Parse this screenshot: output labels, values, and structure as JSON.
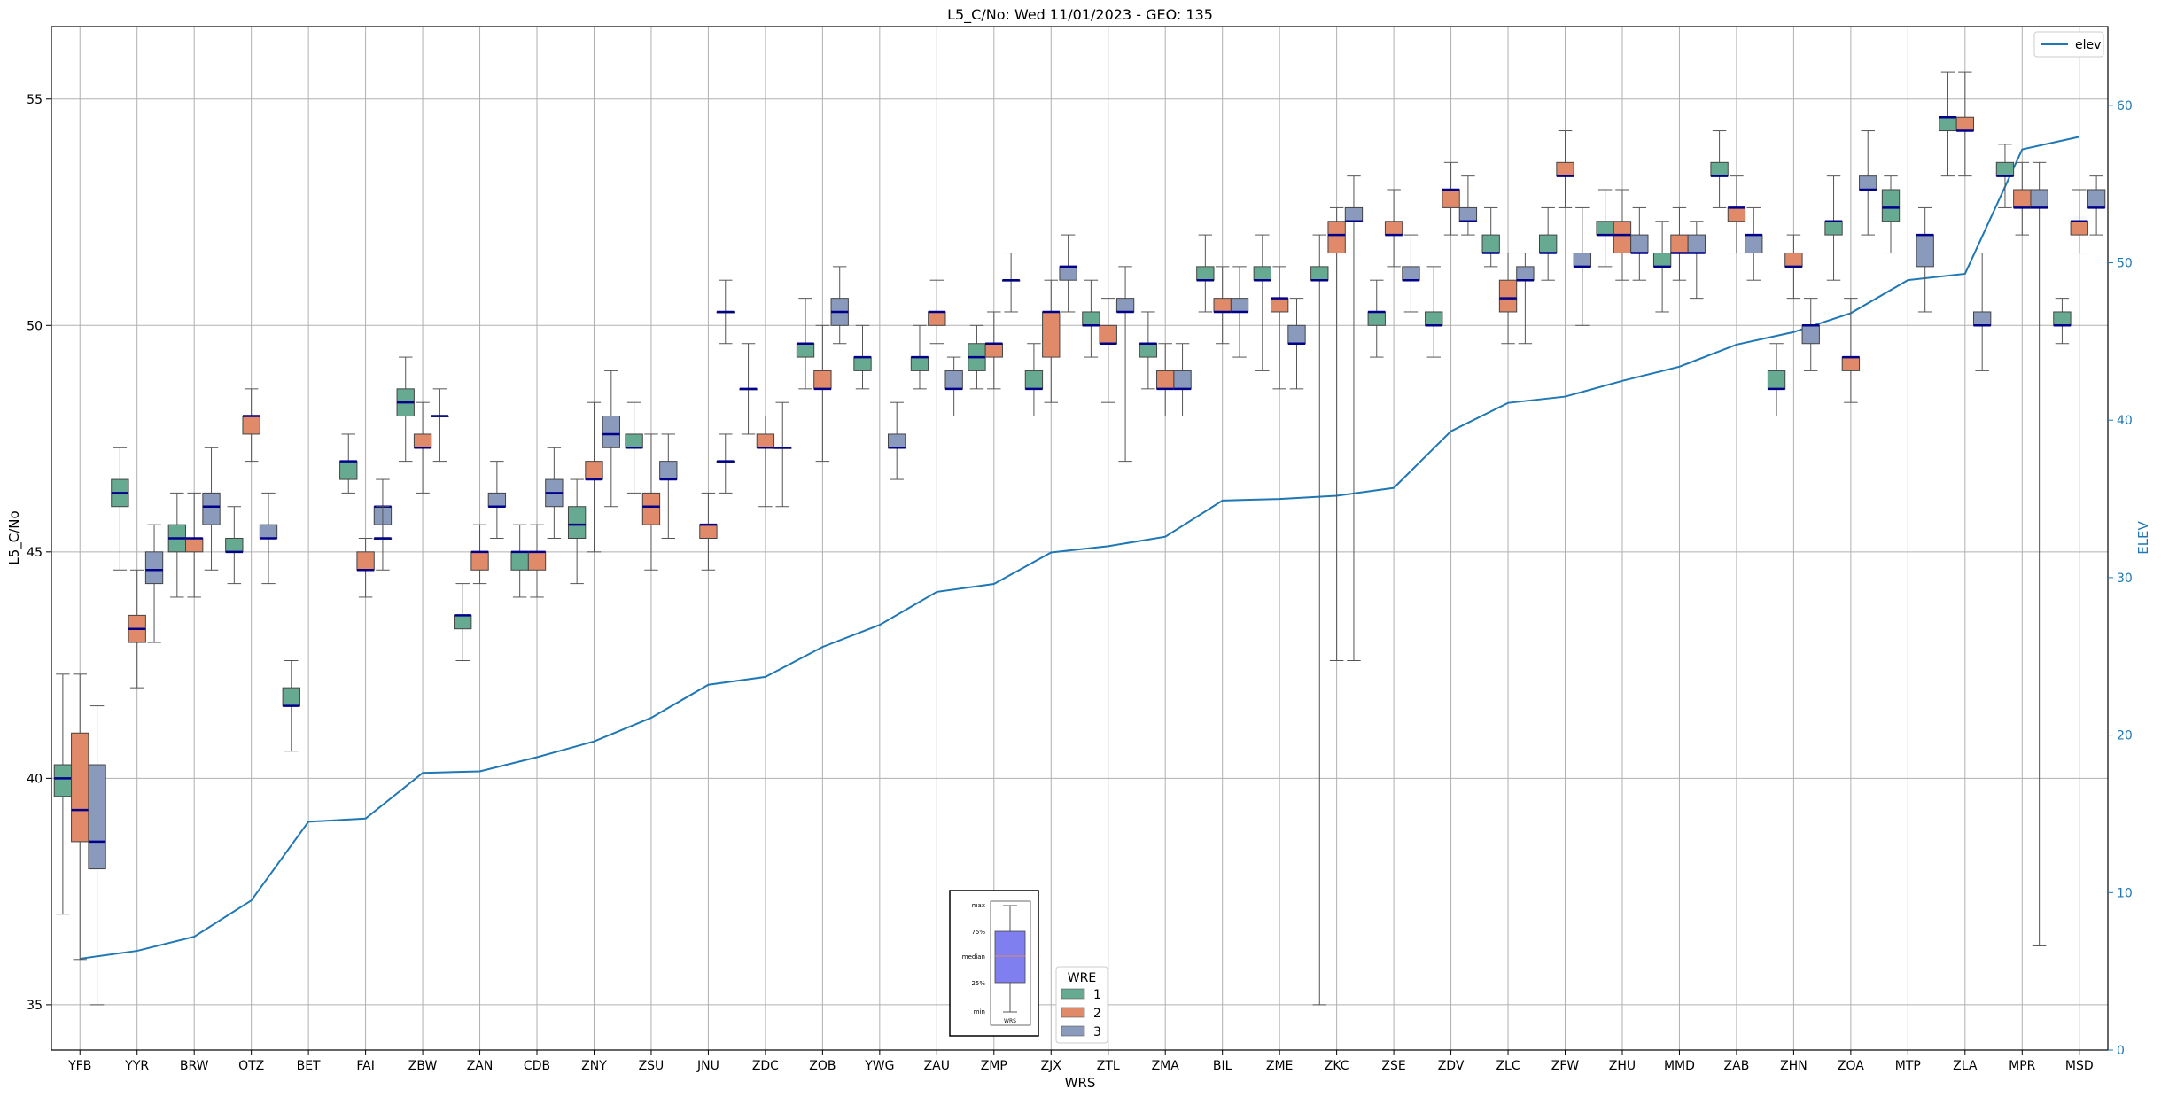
{
  "chart_data": {
    "type": "boxplot",
    "title": "L5_C/No: Wed 11/01/2023 - GEO: 135",
    "xlabel": "WRS",
    "ylabel": "L5_C/No",
    "y2label": "ELEV",
    "ylim": [
      34,
      56.6
    ],
    "y2lim": [
      0,
      65
    ],
    "yticks": [
      35,
      40,
      45,
      50,
      55
    ],
    "y2ticks": [
      0,
      10,
      20,
      30,
      40,
      50,
      60
    ],
    "grid": true,
    "legend": {
      "label": "elev",
      "placement": "top-right"
    },
    "hue_legend": {
      "title": "WRE",
      "entries": [
        "1",
        "2",
        "3"
      ],
      "placement": "bottom-center"
    },
    "colors": {
      "1": "#66ab91",
      "2": "#e08a69",
      "3": "#8a9abd",
      "elev": "#1f77b4",
      "median": "#00008b",
      "right_axis": "#1f77b4"
    },
    "categories": [
      "YFB",
      "YYR",
      "BRW",
      "OTZ",
      "BET",
      "FAI",
      "ZBW",
      "ZAN",
      "CDB",
      "ZNY",
      "ZSU",
      "JNU",
      "ZDC",
      "ZOB",
      "YWG",
      "ZAU",
      "ZMP",
      "ZJX",
      "ZTL",
      "ZMA",
      "BIL",
      "ZME",
      "ZKC",
      "ZSE",
      "ZDV",
      "ZLC",
      "ZFW",
      "ZHU",
      "MMD",
      "ZAB",
      "ZHN",
      "ZOA",
      "MTP",
      "ZLA",
      "MPR",
      "MSD"
    ],
    "elev": [
      5.8,
      6.3,
      7.2,
      9.5,
      14.5,
      14.7,
      17.6,
      17.7,
      18.6,
      19.6,
      21.1,
      23.2,
      23.7,
      25.6,
      27.0,
      29.1,
      29.6,
      31.6,
      32.0,
      32.6,
      34.9,
      35.0,
      35.2,
      35.7,
      39.3,
      41.1,
      41.5,
      42.5,
      43.4,
      44.8,
      45.6,
      46.8,
      48.9,
      49.3,
      57.2,
      58.0
    ],
    "boxes": [
      {
        "wrs": "YFB",
        "wre": "1",
        "min": 37.0,
        "q1": 39.6,
        "median": 40.0,
        "q3": 40.3,
        "max": 42.3
      },
      {
        "wrs": "YFB",
        "wre": "2",
        "min": 36.0,
        "q1": 38.6,
        "median": 39.3,
        "q3": 41.0,
        "max": 42.3
      },
      {
        "wrs": "YFB",
        "wre": "3",
        "min": 35.0,
        "q1": 38.0,
        "median": 38.6,
        "q3": 40.3,
        "max": 41.6
      },
      {
        "wrs": "YYR",
        "wre": "1",
        "min": 44.6,
        "q1": 46.0,
        "median": 46.3,
        "q3": 46.6,
        "max": 47.3
      },
      {
        "wrs": "YYR",
        "wre": "2",
        "min": 42.0,
        "q1": 43.0,
        "median": 43.3,
        "q3": 43.6,
        "max": 44.6
      },
      {
        "wrs": "YYR",
        "wre": "3",
        "min": 43.0,
        "q1": 44.3,
        "median": 44.6,
        "q3": 45.0,
        "max": 45.6
      },
      {
        "wrs": "BRW",
        "wre": "1",
        "min": 44.0,
        "q1": 45.0,
        "median": 45.3,
        "q3": 45.6,
        "max": 46.3
      },
      {
        "wrs": "BRW",
        "wre": "2",
        "min": 44.0,
        "q1": 45.0,
        "median": 45.3,
        "q3": 45.3,
        "max": 46.3
      },
      {
        "wrs": "BRW",
        "wre": "3",
        "min": 44.6,
        "q1": 45.6,
        "median": 46.0,
        "q3": 46.3,
        "max": 47.3
      },
      {
        "wrs": "OTZ",
        "wre": "1",
        "min": 44.3,
        "q1": 45.0,
        "median": 45.0,
        "q3": 45.3,
        "max": 46.0
      },
      {
        "wrs": "OTZ",
        "wre": "2",
        "min": 47.0,
        "q1": 47.6,
        "median": 48.0,
        "q3": 48.0,
        "max": 48.6
      },
      {
        "wrs": "OTZ",
        "wre": "3",
        "min": 44.3,
        "q1": 45.3,
        "median": 45.3,
        "q3": 45.6,
        "max": 46.3
      },
      {
        "wrs": "BET",
        "wre": "1",
        "min": 40.6,
        "q1": 41.6,
        "median": 41.6,
        "q3": 42.0,
        "max": 42.6
      },
      {
        "wrs": "FAI",
        "wre": "1",
        "min": 46.3,
        "q1": 46.6,
        "median": 47.0,
        "q3": 47.0,
        "max": 47.6
      },
      {
        "wrs": "FAI",
        "wre": "2",
        "min": 44.0,
        "q1": 44.6,
        "median": 44.6,
        "q3": 45.0,
        "max": 45.3
      },
      {
        "wrs": "FAI",
        "wre": "3",
        "min": 45.3,
        "q1": 45.6,
        "median": 46.0,
        "q3": 46.0,
        "max": 46.6
      },
      {
        "wrs": "FAI",
        "wre": "3b",
        "min": 44.6,
        "q1": 45.3,
        "median": 45.3,
        "q3": 45.3,
        "max": 46.0
      },
      {
        "wrs": "ZBW",
        "wre": "1",
        "min": 47.0,
        "q1": 48.0,
        "median": 48.3,
        "q3": 48.6,
        "max": 49.3
      },
      {
        "wrs": "ZBW",
        "wre": "2",
        "min": 46.3,
        "q1": 47.3,
        "median": 47.3,
        "q3": 47.6,
        "max": 48.3
      },
      {
        "wrs": "ZBW",
        "wre": "3",
        "min": 47.0,
        "q1": 48.0,
        "median": 48.0,
        "q3": 48.0,
        "max": 48.6
      },
      {
        "wrs": "ZAN",
        "wre": "1",
        "min": 42.6,
        "q1": 43.3,
        "median": 43.6,
        "q3": 43.6,
        "max": 44.3
      },
      {
        "wrs": "ZAN",
        "wre": "2",
        "min": 44.3,
        "q1": 44.6,
        "median": 45.0,
        "q3": 45.0,
        "max": 45.6
      },
      {
        "wrs": "ZAN",
        "wre": "3",
        "min": 45.3,
        "q1": 46.0,
        "median": 46.0,
        "q3": 46.3,
        "max": 47.0
      },
      {
        "wrs": "CDB",
        "wre": "1",
        "min": 44.0,
        "q1": 44.6,
        "median": 45.0,
        "q3": 45.0,
        "max": 45.6
      },
      {
        "wrs": "CDB",
        "wre": "2",
        "min": 44.0,
        "q1": 44.6,
        "median": 45.0,
        "q3": 45.0,
        "max": 45.6
      },
      {
        "wrs": "CDB",
        "wre": "3",
        "min": 45.3,
        "q1": 46.0,
        "median": 46.3,
        "q3": 46.6,
        "max": 47.3
      },
      {
        "wrs": "ZNY",
        "wre": "1",
        "min": 44.3,
        "q1": 45.3,
        "median": 45.6,
        "q3": 46.0,
        "max": 46.6
      },
      {
        "wrs": "ZNY",
        "wre": "2",
        "min": 45.0,
        "q1": 46.6,
        "median": 46.6,
        "q3": 47.0,
        "max": 48.3
      },
      {
        "wrs": "ZNY",
        "wre": "3",
        "min": 46.0,
        "q1": 47.3,
        "median": 47.6,
        "q3": 48.0,
        "max": 49.0
      },
      {
        "wrs": "ZSU",
        "wre": "1",
        "min": 46.3,
        "q1": 47.3,
        "median": 47.3,
        "q3": 47.6,
        "max": 48.3
      },
      {
        "wrs": "ZSU",
        "wre": "2",
        "min": 44.6,
        "q1": 45.6,
        "median": 46.0,
        "q3": 46.3,
        "max": 47.6
      },
      {
        "wrs": "ZSU",
        "wre": "3",
        "min": 45.3,
        "q1": 46.6,
        "median": 46.6,
        "q3": 47.0,
        "max": 47.6
      },
      {
        "wrs": "JNU",
        "wre": "2",
        "min": 44.6,
        "q1": 45.3,
        "median": 45.6,
        "q3": 45.6,
        "max": 46.3
      },
      {
        "wrs": "JNU",
        "wre": "3",
        "min": 46.3,
        "q1": 47.0,
        "median": 47.0,
        "q3": 47.0,
        "max": 47.6
      },
      {
        "wrs": "JNU",
        "wre": "3b",
        "min": 49.6,
        "q1": 50.3,
        "median": 50.3,
        "q3": 50.3,
        "max": 51.0
      },
      {
        "wrs": "ZDC",
        "wre": "1",
        "min": 47.6,
        "q1": 48.6,
        "median": 48.6,
        "q3": 48.6,
        "max": 49.6
      },
      {
        "wrs": "ZDC",
        "wre": "2",
        "min": 46.0,
        "q1": 47.3,
        "median": 47.3,
        "q3": 47.6,
        "max": 48.0
      },
      {
        "wrs": "ZDC",
        "wre": "3",
        "min": 46.0,
        "q1": 47.3,
        "median": 47.3,
        "q3": 47.3,
        "max": 48.3
      },
      {
        "wrs": "ZOB",
        "wre": "1",
        "min": 48.6,
        "q1": 49.3,
        "median": 49.6,
        "q3": 49.6,
        "max": 50.6
      },
      {
        "wrs": "ZOB",
        "wre": "2",
        "min": 47.0,
        "q1": 48.6,
        "median": 48.6,
        "q3": 49.0,
        "max": 50.0
      },
      {
        "wrs": "ZOB",
        "wre": "3",
        "min": 49.6,
        "q1": 50.0,
        "median": 50.3,
        "q3": 50.6,
        "max": 51.3
      },
      {
        "wrs": "YWG",
        "wre": "1",
        "min": 48.6,
        "q1": 49.0,
        "median": 49.3,
        "q3": 49.3,
        "max": 50.0
      },
      {
        "wrs": "YWG",
        "wre": "3",
        "min": 46.6,
        "q1": 47.3,
        "median": 47.3,
        "q3": 47.6,
        "max": 48.3
      },
      {
        "wrs": "ZAU",
        "wre": "1",
        "min": 48.6,
        "q1": 49.0,
        "median": 49.3,
        "q3": 49.3,
        "max": 50.0
      },
      {
        "wrs": "ZAU",
        "wre": "2",
        "min": 49.6,
        "q1": 50.0,
        "median": 50.3,
        "q3": 50.3,
        "max": 51.0
      },
      {
        "wrs": "ZAU",
        "wre": "3",
        "min": 48.0,
        "q1": 48.6,
        "median": 48.6,
        "q3": 49.0,
        "max": 49.3
      },
      {
        "wrs": "ZMP",
        "wre": "1",
        "min": 48.6,
        "q1": 49.0,
        "median": 49.3,
        "q3": 49.6,
        "max": 50.0
      },
      {
        "wrs": "ZMP",
        "wre": "2",
        "min": 48.6,
        "q1": 49.3,
        "median": 49.6,
        "q3": 49.6,
        "max": 50.3
      },
      {
        "wrs": "ZMP",
        "wre": "3",
        "min": 50.3,
        "q1": 51.0,
        "median": 51.0,
        "q3": 51.0,
        "max": 51.6
      },
      {
        "wrs": "ZJX",
        "wre": "1",
        "min": 48.0,
        "q1": 48.6,
        "median": 48.6,
        "q3": 49.0,
        "max": 49.6
      },
      {
        "wrs": "ZJX",
        "wre": "2",
        "min": 48.3,
        "q1": 49.3,
        "median": 50.3,
        "q3": 50.3,
        "max": 51.0
      },
      {
        "wrs": "ZJX",
        "wre": "3",
        "min": 50.3,
        "q1": 51.0,
        "median": 51.3,
        "q3": 51.3,
        "max": 52.0
      },
      {
        "wrs": "ZTL",
        "wre": "1",
        "min": 49.3,
        "q1": 50.0,
        "median": 50.0,
        "q3": 50.3,
        "max": 51.0
      },
      {
        "wrs": "ZTL",
        "wre": "2",
        "min": 48.3,
        "q1": 49.6,
        "median": 49.6,
        "q3": 50.0,
        "max": 50.6
      },
      {
        "wrs": "ZTL",
        "wre": "3",
        "min": 47.0,
        "q1": 50.3,
        "median": 50.3,
        "q3": 50.6,
        "max": 51.3
      },
      {
        "wrs": "ZMA",
        "wre": "1",
        "min": 48.6,
        "q1": 49.3,
        "median": 49.6,
        "q3": 49.6,
        "max": 50.3
      },
      {
        "wrs": "ZMA",
        "wre": "2",
        "min": 48.0,
        "q1": 48.6,
        "median": 48.6,
        "q3": 49.0,
        "max": 49.6
      },
      {
        "wrs": "ZMA",
        "wre": "3",
        "min": 48.0,
        "q1": 48.6,
        "median": 48.6,
        "q3": 49.0,
        "max": 49.6
      },
      {
        "wrs": "BIL",
        "wre": "1",
        "min": 50.3,
        "q1": 51.0,
        "median": 51.0,
        "q3": 51.3,
        "max": 52.0
      },
      {
        "wrs": "BIL",
        "wre": "2",
        "min": 49.6,
        "q1": 50.3,
        "median": 50.3,
        "q3": 50.6,
        "max": 51.3
      },
      {
        "wrs": "BIL",
        "wre": "3",
        "min": 49.3,
        "q1": 50.3,
        "median": 50.3,
        "q3": 50.6,
        "max": 51.3
      },
      {
        "wrs": "ZME",
        "wre": "1",
        "min": 49.0,
        "q1": 51.0,
        "median": 51.0,
        "q3": 51.3,
        "max": 52.0
      },
      {
        "wrs": "ZME",
        "wre": "2",
        "min": 48.6,
        "q1": 50.3,
        "median": 50.6,
        "q3": 50.6,
        "max": 51.3
      },
      {
        "wrs": "ZME",
        "wre": "3",
        "min": 48.6,
        "q1": 49.6,
        "median": 49.6,
        "q3": 50.0,
        "max": 50.6
      },
      {
        "wrs": "ZKC",
        "wre": "1",
        "min": 35.0,
        "q1": 51.0,
        "median": 51.0,
        "q3": 51.3,
        "max": 52.0
      },
      {
        "wrs": "ZKC",
        "wre": "2",
        "min": 42.6,
        "q1": 51.6,
        "median": 52.0,
        "q3": 52.3,
        "max": 52.6
      },
      {
        "wrs": "ZKC",
        "wre": "3",
        "min": 42.6,
        "q1": 52.3,
        "median": 52.3,
        "q3": 52.6,
        "max": 53.3
      },
      {
        "wrs": "ZSE",
        "wre": "1",
        "min": 49.3,
        "q1": 50.0,
        "median": 50.3,
        "q3": 50.3,
        "max": 51.0
      },
      {
        "wrs": "ZSE",
        "wre": "2",
        "min": 51.3,
        "q1": 52.0,
        "median": 52.0,
        "q3": 52.3,
        "max": 53.0
      },
      {
        "wrs": "ZSE",
        "wre": "3",
        "min": 50.3,
        "q1": 51.0,
        "median": 51.0,
        "q3": 51.3,
        "max": 52.0
      },
      {
        "wrs": "ZDV",
        "wre": "1",
        "min": 49.3,
        "q1": 50.0,
        "median": 50.0,
        "q3": 50.3,
        "max": 51.3
      },
      {
        "wrs": "ZDV",
        "wre": "2",
        "min": 52.0,
        "q1": 52.6,
        "median": 53.0,
        "q3": 53.0,
        "max": 53.6
      },
      {
        "wrs": "ZDV",
        "wre": "3",
        "min": 52.0,
        "q1": 52.3,
        "median": 52.3,
        "q3": 52.6,
        "max": 53.3
      },
      {
        "wrs": "ZLC",
        "wre": "1",
        "min": 51.3,
        "q1": 51.6,
        "median": 51.6,
        "q3": 52.0,
        "max": 52.6
      },
      {
        "wrs": "ZLC",
        "wre": "2",
        "min": 49.6,
        "q1": 50.3,
        "median": 50.6,
        "q3": 51.0,
        "max": 51.6
      },
      {
        "wrs": "ZLC",
        "wre": "3",
        "min": 49.6,
        "q1": 51.0,
        "median": 51.0,
        "q3": 51.3,
        "max": 51.6
      },
      {
        "wrs": "ZFW",
        "wre": "1",
        "min": 51.0,
        "q1": 51.6,
        "median": 51.6,
        "q3": 52.0,
        "max": 52.6
      },
      {
        "wrs": "ZFW",
        "wre": "2",
        "min": 52.6,
        "q1": 53.3,
        "median": 53.3,
        "q3": 53.6,
        "max": 54.3
      },
      {
        "wrs": "ZFW",
        "wre": "3",
        "min": 50.0,
        "q1": 51.3,
        "median": 51.3,
        "q3": 51.6,
        "max": 52.6
      },
      {
        "wrs": "ZHU",
        "wre": "1",
        "min": 51.3,
        "q1": 52.0,
        "median": 52.0,
        "q3": 52.3,
        "max": 53.0
      },
      {
        "wrs": "ZHU",
        "wre": "2",
        "min": 51.0,
        "q1": 51.6,
        "median": 52.0,
        "q3": 52.3,
        "max": 53.0
      },
      {
        "wrs": "ZHU",
        "wre": "3",
        "min": 51.0,
        "q1": 51.6,
        "median": 51.6,
        "q3": 52.0,
        "max": 52.6
      },
      {
        "wrs": "MMD",
        "wre": "1",
        "min": 50.3,
        "q1": 51.3,
        "median": 51.3,
        "q3": 51.6,
        "max": 52.3
      },
      {
        "wrs": "MMD",
        "wre": "2",
        "min": 51.0,
        "q1": 51.6,
        "median": 51.6,
        "q3": 52.0,
        "max": 52.6
      },
      {
        "wrs": "MMD",
        "wre": "3",
        "min": 50.6,
        "q1": 51.6,
        "median": 51.6,
        "q3": 52.0,
        "max": 52.3
      },
      {
        "wrs": "ZAB",
        "wre": "1",
        "min": 52.6,
        "q1": 53.3,
        "median": 53.3,
        "q3": 53.6,
        "max": 54.3
      },
      {
        "wrs": "ZAB",
        "wre": "2",
        "min": 51.6,
        "q1": 52.3,
        "median": 52.6,
        "q3": 52.6,
        "max": 53.3
      },
      {
        "wrs": "ZAB",
        "wre": "3",
        "min": 51.0,
        "q1": 51.6,
        "median": 52.0,
        "q3": 52.0,
        "max": 52.6
      },
      {
        "wrs": "ZHN",
        "wre": "1",
        "min": 48.0,
        "q1": 48.6,
        "median": 48.6,
        "q3": 49.0,
        "max": 49.6
      },
      {
        "wrs": "ZHN",
        "wre": "2",
        "min": 50.6,
        "q1": 51.3,
        "median": 51.3,
        "q3": 51.6,
        "max": 52.0
      },
      {
        "wrs": "ZHN",
        "wre": "3",
        "min": 49.0,
        "q1": 49.6,
        "median": 50.0,
        "q3": 50.0,
        "max": 50.6
      },
      {
        "wrs": "ZOA",
        "wre": "1",
        "min": 51.0,
        "q1": 52.0,
        "median": 52.3,
        "q3": 52.3,
        "max": 53.3
      },
      {
        "wrs": "ZOA",
        "wre": "2",
        "min": 48.3,
        "q1": 49.0,
        "median": 49.3,
        "q3": 49.3,
        "max": 50.6
      },
      {
        "wrs": "ZOA",
        "wre": "3",
        "min": 52.0,
        "q1": 53.0,
        "median": 53.0,
        "q3": 53.3,
        "max": 54.3
      },
      {
        "wrs": "MTP",
        "wre": "1",
        "min": 51.6,
        "q1": 52.3,
        "median": 52.6,
        "q3": 53.0,
        "max": 53.3
      },
      {
        "wrs": "MTP",
        "wre": "3",
        "min": 50.3,
        "q1": 51.3,
        "median": 52.0,
        "q3": 52.0,
        "max": 52.6
      },
      {
        "wrs": "ZLA",
        "wre": "1",
        "min": 53.3,
        "q1": 54.3,
        "median": 54.6,
        "q3": 54.6,
        "max": 55.6
      },
      {
        "wrs": "ZLA",
        "wre": "2",
        "min": 53.3,
        "q1": 54.3,
        "median": 54.3,
        "q3": 54.6,
        "max": 55.6
      },
      {
        "wrs": "ZLA",
        "wre": "3",
        "min": 49.0,
        "q1": 50.0,
        "median": 50.0,
        "q3": 50.3,
        "max": 51.6
      },
      {
        "wrs": "MPR",
        "wre": "1",
        "min": 52.6,
        "q1": 53.3,
        "median": 53.3,
        "q3": 53.6,
        "max": 54.0
      },
      {
        "wrs": "MPR",
        "wre": "2",
        "min": 52.0,
        "q1": 52.6,
        "median": 52.6,
        "q3": 53.0,
        "max": 53.6
      },
      {
        "wrs": "MPR",
        "wre": "3",
        "min": 36.3,
        "q1": 52.6,
        "median": 52.6,
        "q3": 53.0,
        "max": 53.6
      },
      {
        "wrs": "MSD",
        "wre": "1",
        "min": 49.6,
        "q1": 50.0,
        "median": 50.0,
        "q3": 50.3,
        "max": 50.6
      },
      {
        "wrs": "MSD",
        "wre": "2",
        "min": 51.6,
        "q1": 52.0,
        "median": 52.3,
        "q3": 52.3,
        "max": 53.0
      },
      {
        "wrs": "MSD",
        "wre": "3",
        "min": 52.0,
        "q1": 52.6,
        "median": 52.6,
        "q3": 53.0,
        "max": 53.3
      }
    ],
    "key_image": {
      "labels": [
        "max",
        "75%",
        "median",
        "25%",
        "min"
      ],
      "xlabel": "WRS"
    }
  }
}
